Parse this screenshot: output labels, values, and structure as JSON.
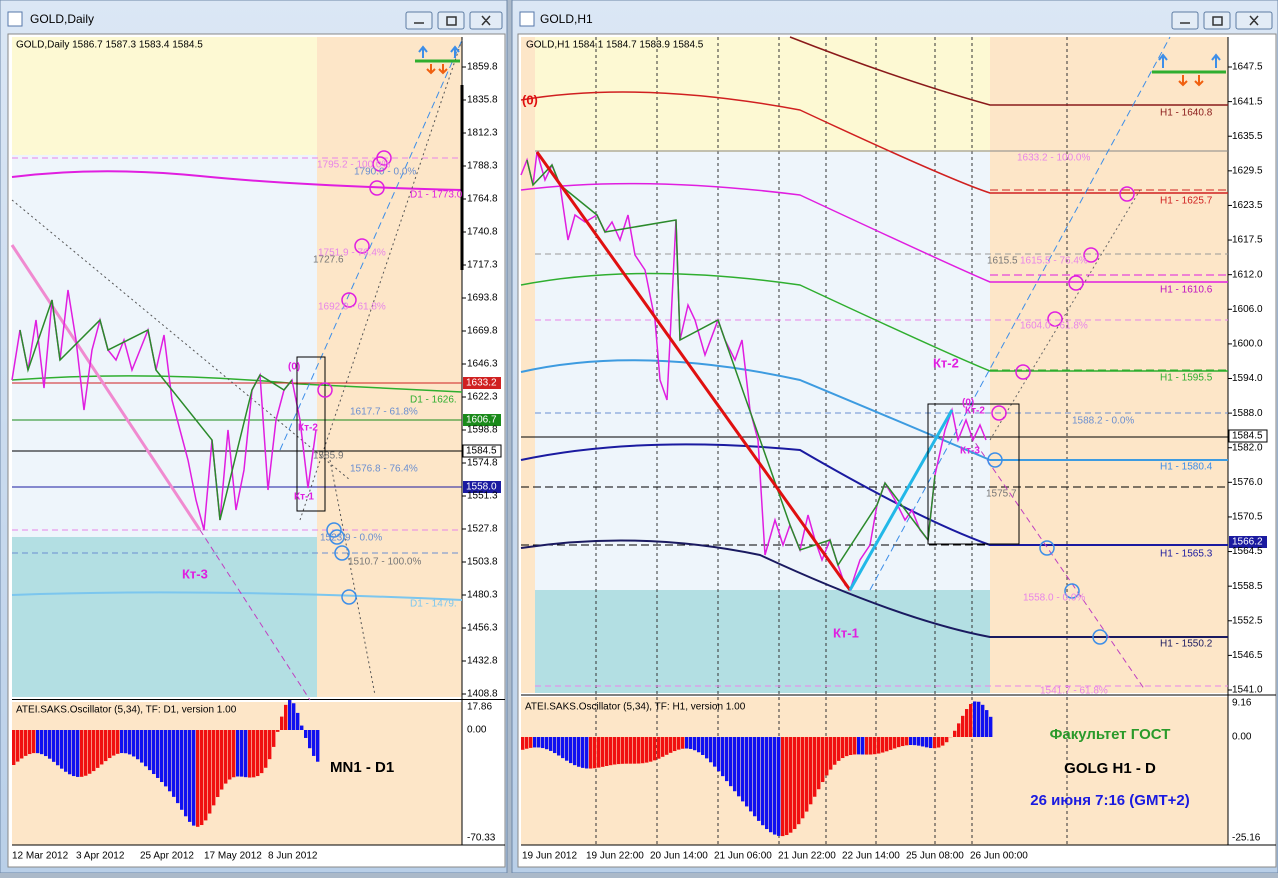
{
  "windows": [
    {
      "title": "GOLD,Daily",
      "header": "GOLD,Daily  1586.7 1587.3 1583.4 1584.5",
      "price_scale": [
        "1859.8",
        "1835.8",
        "1812.3",
        "1788.3",
        "1764.8",
        "1740.8",
        "1717.3",
        "1693.8",
        "1669.8",
        "1646.3",
        "1622.3",
        "1598.8",
        "1574.8",
        "1551.3",
        "1527.8",
        "1503.8",
        "1480.3",
        "1456.3",
        "1432.8",
        "1408.8"
      ],
      "price_tags": [
        "1633.2",
        "1606.7",
        "1584.5",
        "1558.0"
      ],
      "labels": [
        "(0)",
        "Кт-2",
        "Кт-1",
        "Кт-3",
        "1795.2 - 100.0%",
        "1790.0 - 0.0%",
        "D1 - 1773.0",
        "1751.9 - 76.4%",
        "1727.6",
        "1692.0 - 61.8%",
        "D1 - 1626.",
        "1617.7 - 61.8%",
        "1585.9",
        "1576.8 - 76.4%",
        "1523.9 - 0.0%",
        "1510.7 - 100.0%",
        "D1 - 1479."
      ],
      "oscillator": {
        "title": "ATEI.SAKS.Oscillator (5,34), TF: D1, version 1.00",
        "scale": [
          "17.86",
          "0.00",
          "-70.33"
        ],
        "notes": [
          "MN1 - D1"
        ]
      },
      "dates": [
        "12 Mar 2012",
        "3 Apr 2012",
        "25 Apr 2012",
        "17 May 2012",
        "8 Jun 2012"
      ]
    },
    {
      "title": "GOLD,H1",
      "header": "GOLD,H1  1584.1 1584.7 1583.9 1584.5",
      "price_scale": [
        "1647.5",
        "1641.5",
        "1635.5",
        "1629.5",
        "1623.5",
        "1617.5",
        "1612.0",
        "1606.0",
        "1600.0",
        "1594.0",
        "1588.0",
        "1582.0",
        "1576.0",
        "1570.5",
        "1564.5",
        "1558.5",
        "1552.5",
        "1546.5",
        "1541.0"
      ],
      "price_tags": [
        "1584.5",
        "1566.2"
      ],
      "labels": [
        "(0)",
        "H1 - 1640.8",
        "1633.2 - 100.0%",
        "H1 - 1625.7",
        "1615.5",
        "1615.5 - 76.4%",
        "H1 - 1610.6",
        "1604.0 - 61.8%",
        "Кт-2",
        "H1 - 1595.5",
        "(0)",
        "Кт-2",
        "Кт-3",
        "1588.2 - 0.0%",
        "H1 - 1580.4",
        "1575.7",
        "H1 - 1565.3",
        "1558.0 - 0.0%",
        "H1 - 1550.2",
        "1541.7 - 61.8%",
        "Кт-1"
      ],
      "oscillator": {
        "title": "ATEI.SAKS.Oscillator (5,34), TF: H1, version 1.00",
        "scale": [
          "9.16",
          "0.00",
          "-25.16"
        ],
        "notes": [
          "Факультет ГОСТ",
          "GOLG  H1 - D",
          "26 июня 7:16 (GMT+2)"
        ]
      },
      "dates": [
        "19 Jun 2012",
        "19 Jun 22:00",
        "20 Jun 14:00",
        "21 Jun 06:00",
        "21 Jun 22:00",
        "22 Jun 14:00",
        "25 Jun 08:00",
        "26 Jun 00:00"
      ]
    }
  ]
}
